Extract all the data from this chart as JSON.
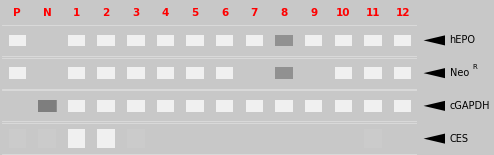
{
  "lane_labels": [
    "P",
    "N",
    "1",
    "2",
    "3",
    "4",
    "5",
    "6",
    "7",
    "8",
    "9",
    "10",
    "11",
    "12"
  ],
  "fig_width": 4.94,
  "fig_height": 1.55,
  "dpi": 100,
  "gel_bg": "#0a0a0a",
  "row_border_color": "#ffffff",
  "outer_bg": "#c8c8c8",
  "label_color": "red",
  "label_fontsize": 7.5,
  "n_lanes": 14,
  "n_rows": 4,
  "band_labels": [
    "hEPO",
    "Neo",
    "cGAPDH",
    "CES"
  ],
  "band_label_fontsize": 7,
  "hEPO_bands": [
    0,
    2,
    3,
    4,
    5,
    6,
    7,
    8,
    9,
    10,
    11,
    12,
    13
  ],
  "hEPO_bright": [
    0,
    2,
    3,
    4,
    5,
    6,
    7,
    8,
    10,
    11,
    12,
    13
  ],
  "hEPO_dim": [
    9
  ],
  "NeoR_bands": [
    0,
    2,
    3,
    4,
    5,
    6,
    7,
    9,
    11,
    12,
    13
  ],
  "NeoR_bright": [
    0,
    2,
    3,
    4,
    5,
    6,
    7,
    11,
    12,
    13
  ],
  "NeoR_dim": [
    9
  ],
  "cGAPDH_bands": [
    1,
    2,
    3,
    4,
    5,
    6,
    7,
    8,
    9,
    10,
    11,
    12,
    13
  ],
  "cGAPDH_bright": [
    2,
    3,
    4,
    5,
    6,
    7,
    8,
    9,
    10,
    11,
    12,
    13
  ],
  "cGAPDH_dim": [
    1
  ],
  "CES_bands": [
    0,
    1,
    2,
    3,
    4,
    12
  ],
  "CES_bright": [
    2,
    3
  ],
  "CES_mid": [
    0,
    1,
    4,
    12
  ],
  "CES_dim": []
}
